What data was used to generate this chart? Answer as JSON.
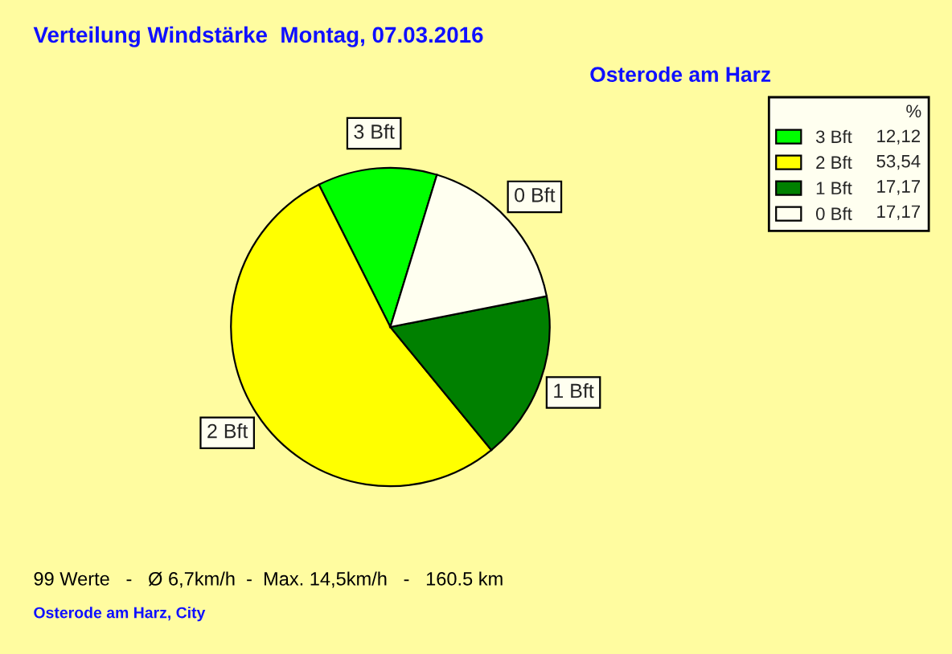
{
  "chart_data": {
    "type": "pie",
    "title": "Verteilung Windstärke  Montag, 07.03.2016",
    "subtitle": "Osterode am Harz",
    "categories": [
      "3 Bft",
      "2 Bft",
      "1 Bft",
      "0 Bft"
    ],
    "values": [
      12.12,
      53.54,
      17.17,
      17.17
    ],
    "value_labels": [
      "12,12",
      "53,54",
      "17,17",
      "17,17"
    ],
    "colors": [
      "#00ff00",
      "#ffff00",
      "#008000",
      "#fffff0"
    ],
    "legend_title": "%",
    "legend": "top right",
    "annotations": [
      "99 Werte   -   Ø 6,7km/h  -  Max. 14,5km/h   -   160.5 km",
      "Osterode am Harz, City"
    ]
  }
}
